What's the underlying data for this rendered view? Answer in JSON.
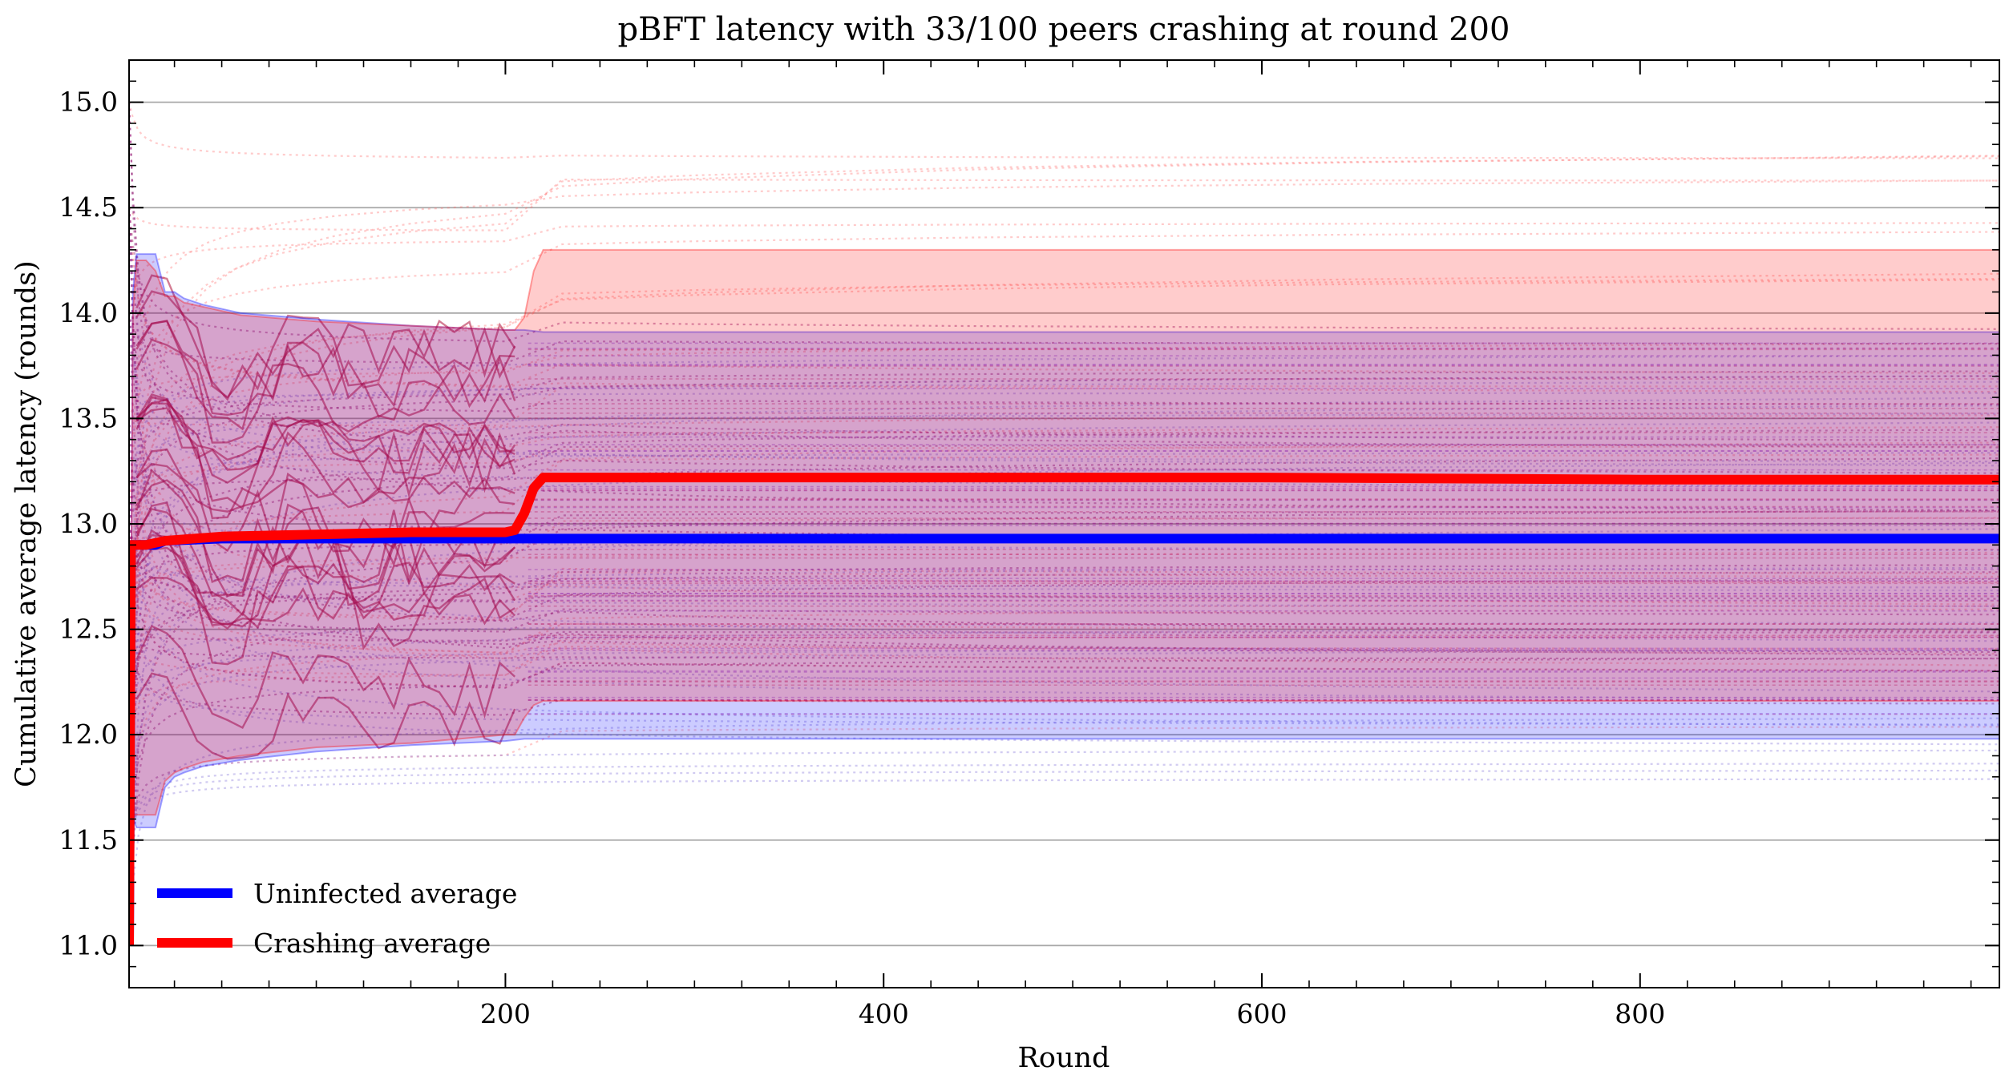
{
  "chart_data": {
    "type": "line",
    "title": "pBFT latency with 33/100 peers crashing at round 200",
    "xlabel": "Round",
    "ylabel": "Cumulative average latency (rounds)",
    "xlim": [
      1,
      990
    ],
    "ylim": [
      10.8,
      15.2
    ],
    "xticks": [
      200,
      400,
      600,
      800
    ],
    "xtick_labels": [
      "200",
      "400",
      "600",
      "800"
    ],
    "yticks": [
      11.0,
      11.5,
      12.0,
      12.5,
      13.0,
      13.5,
      14.0,
      14.5,
      15.0
    ],
    "ytick_labels": [
      "11.0",
      "11.5",
      "12.0",
      "12.5",
      "13.0",
      "13.5",
      "14.0",
      "14.5",
      "15.0"
    ],
    "grid": "horizontal",
    "legend_position": "lower-left",
    "crash_round": 200,
    "series": [
      {
        "name": "Uninfected average",
        "color": "#0000ff",
        "x": [
          1,
          2,
          5,
          10,
          15,
          20,
          50,
          100,
          150,
          200,
          220,
          300,
          400,
          600,
          800,
          990
        ],
        "y": [
          11.0,
          12.9,
          12.9,
          12.9,
          12.9,
          12.92,
          12.93,
          12.93,
          12.93,
          12.93,
          12.93,
          12.93,
          12.93,
          12.93,
          12.93,
          12.93
        ]
      },
      {
        "name": "Crashing average",
        "color": "#ff0000",
        "x": [
          1,
          2,
          5,
          10,
          15,
          20,
          50,
          100,
          150,
          200,
          205,
          210,
          215,
          220,
          230,
          300,
          400,
          600,
          800,
          990
        ],
        "y": [
          11.0,
          12.9,
          12.9,
          12.9,
          12.91,
          12.92,
          12.94,
          12.95,
          12.96,
          12.96,
          12.97,
          13.05,
          13.17,
          13.22,
          13.22,
          13.22,
          13.22,
          13.22,
          13.21,
          13.21
        ]
      }
    ],
    "bands": [
      {
        "series": "Uninfected average",
        "color": "#0000ff",
        "x": [
          1,
          3,
          5,
          10,
          15,
          20,
          25,
          30,
          40,
          60,
          100,
          150,
          200,
          210,
          220,
          300,
          400,
          600,
          800,
          990
        ],
        "upper": [
          11.0,
          14.1,
          14.28,
          14.28,
          14.28,
          14.1,
          14.1,
          14.07,
          14.04,
          14.0,
          13.97,
          13.94,
          13.92,
          13.92,
          13.91,
          13.91,
          13.91,
          13.91,
          13.91,
          13.91
        ],
        "lower": [
          11.0,
          11.6,
          11.56,
          11.56,
          11.56,
          11.75,
          11.8,
          11.82,
          11.85,
          11.88,
          11.92,
          11.95,
          11.97,
          11.98,
          11.98,
          11.98,
          11.98,
          11.98,
          11.98,
          11.98
        ]
      },
      {
        "series": "Crashing average",
        "color": "#ff0000",
        "x": [
          1,
          3,
          5,
          10,
          15,
          20,
          25,
          30,
          40,
          60,
          100,
          150,
          200,
          205,
          210,
          215,
          220,
          300,
          400,
          600,
          800,
          990
        ],
        "upper": [
          11.0,
          14.0,
          14.25,
          14.25,
          14.2,
          14.08,
          14.08,
          14.05,
          14.03,
          13.99,
          13.96,
          13.94,
          13.92,
          13.92,
          13.98,
          14.2,
          14.3,
          14.3,
          14.3,
          14.3,
          14.3,
          14.3
        ],
        "lower": [
          11.0,
          11.62,
          11.62,
          11.62,
          11.62,
          11.78,
          11.82,
          11.84,
          11.87,
          11.9,
          11.94,
          11.96,
          12.0,
          12.0,
          12.08,
          12.14,
          12.16,
          12.16,
          12.16,
          12.16,
          12.16,
          12.16
        ]
      }
    ]
  }
}
